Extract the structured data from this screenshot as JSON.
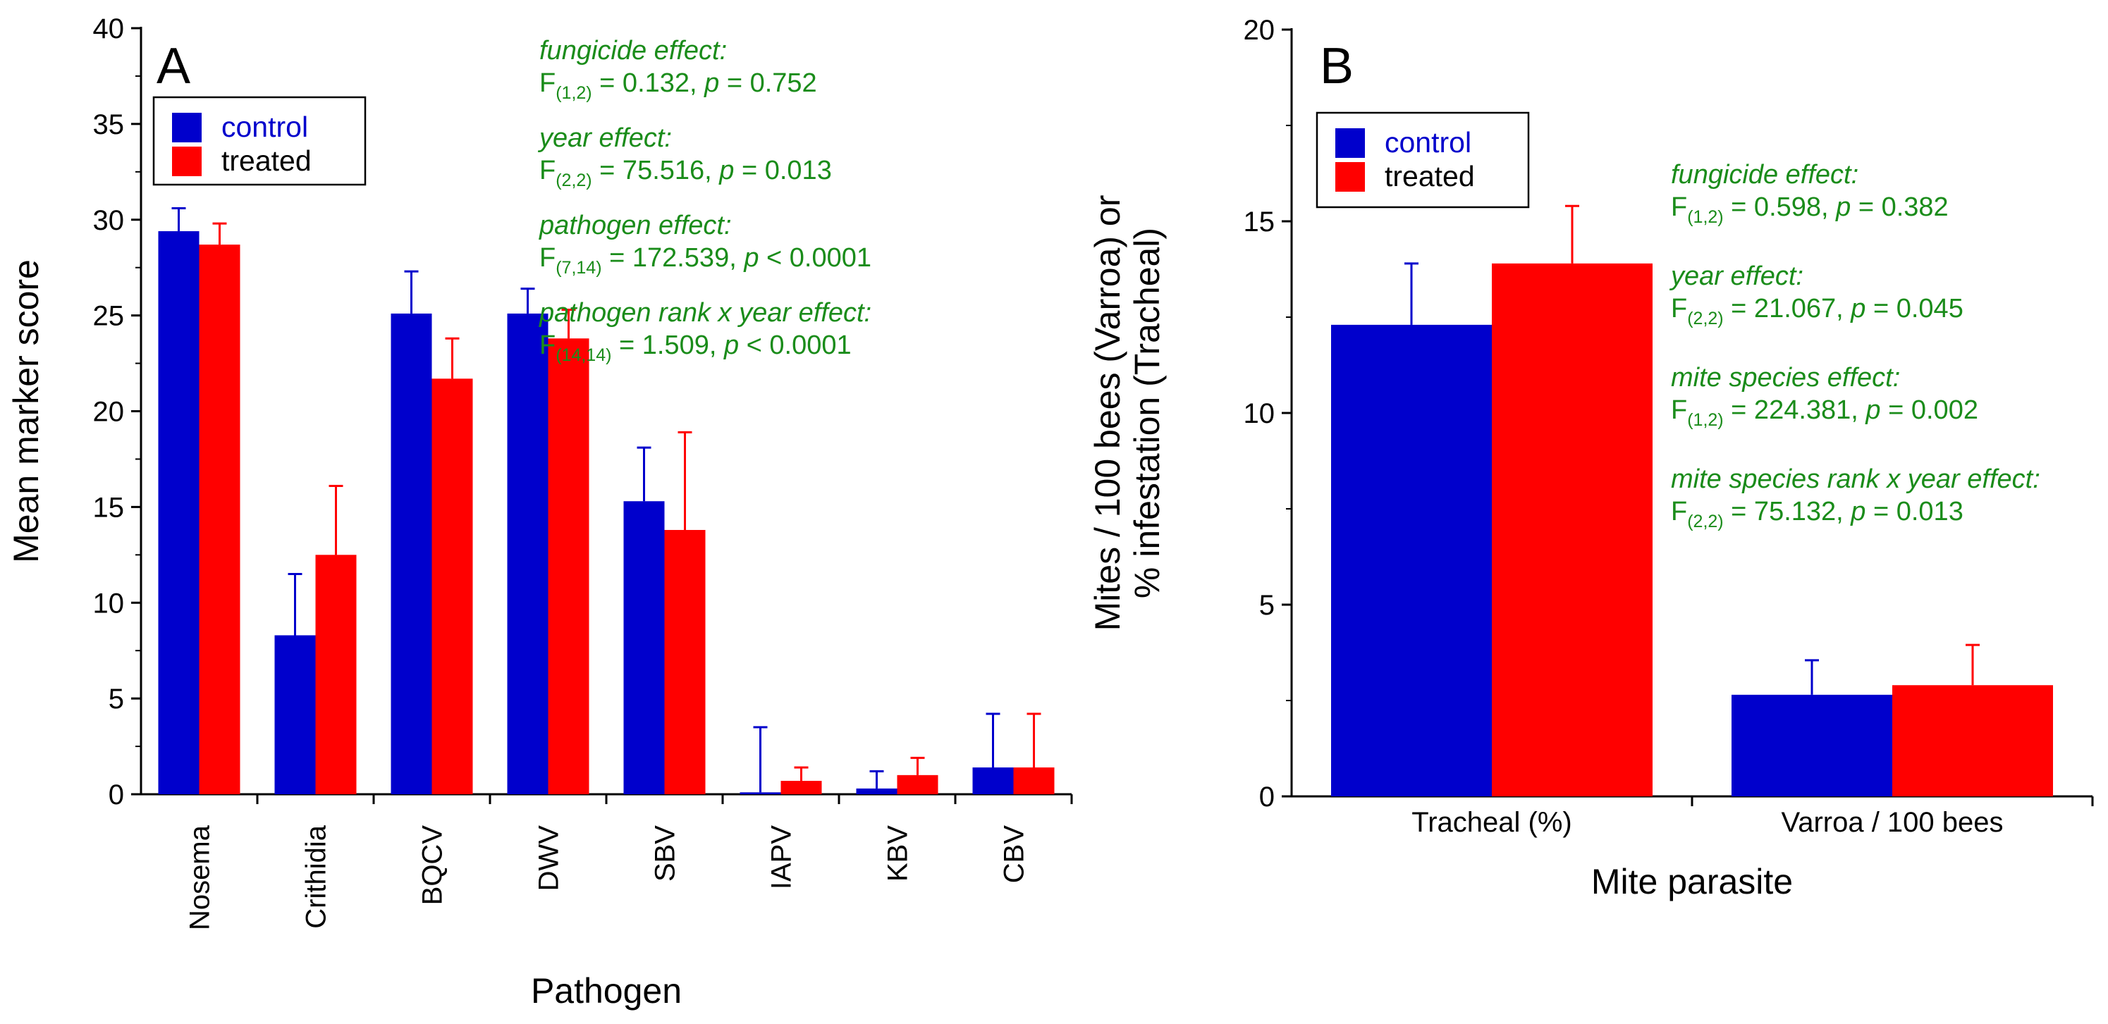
{
  "colors": {
    "control": "#0000cc",
    "treated": "#ff0000",
    "stats": "#1a8c1a",
    "axis": "#000000"
  },
  "chart_data": [
    {
      "type": "bar",
      "panel": "A",
      "xlabel": "Pathogen",
      "ylabel": "Mean marker score",
      "ylim": [
        0,
        40
      ],
      "yticks": [
        "0",
        "5",
        "10",
        "15",
        "20",
        "25",
        "30",
        "35",
        "40"
      ],
      "categories": [
        "Nosema",
        "Crithidia",
        "BQCV",
        "DWV",
        "SBV",
        "IAPV",
        "KBV",
        "CBV"
      ],
      "series": [
        {
          "name": "control",
          "values": [
            29.4,
            8.3,
            25.1,
            25.1,
            15.3,
            0.1,
            0.3,
            1.4
          ],
          "errors": [
            1.2,
            3.2,
            2.2,
            1.3,
            2.8,
            3.4,
            0.9,
            2.8
          ]
        },
        {
          "name": "treated",
          "values": [
            28.7,
            12.5,
            21.7,
            23.8,
            13.8,
            0.7,
            1.0,
            1.4
          ],
          "errors": [
            1.1,
            3.6,
            2.1,
            1.5,
            5.1,
            0.7,
            0.9,
            2.8
          ]
        }
      ],
      "legend": {
        "control": "control",
        "treated": "treated"
      },
      "stats": [
        {
          "heading": "fungicide effect:",
          "sub": "(1,2)",
          "rest": " = 0.132, ",
          "p_rel": " = 0.752"
        },
        {
          "heading": "year effect:",
          "sub": "(2,2)",
          "rest": " = 75.516, ",
          "p_rel": " = 0.013"
        },
        {
          "heading": "pathogen effect:",
          "sub": "(7,14)",
          "rest": " = 172.539, ",
          "p_rel": " < 0.0001"
        },
        {
          "heading": "pathogen rank x year effect:",
          "sub": "(14,14)",
          "rest": " = 1.509, ",
          "p_rel": " < 0.0001"
        }
      ]
    },
    {
      "type": "bar",
      "panel": "B",
      "xlabel": "Mite parasite",
      "ylabel_line1": "Mites / 100 bees (Varroa) or",
      "ylabel_line2": "% infestation (Tracheal)",
      "ylim": [
        0,
        20
      ],
      "yticks": [
        "0",
        "5",
        "10",
        "15",
        "20"
      ],
      "categories": [
        "Tracheal (%)",
        "Varroa / 100 bees"
      ],
      "series": [
        {
          "name": "control",
          "values": [
            12.3,
            2.65
          ],
          "errors": [
            1.6,
            0.9
          ]
        },
        {
          "name": "treated",
          "values": [
            13.9,
            2.9
          ],
          "errors": [
            1.5,
            1.05
          ]
        }
      ],
      "legend": {
        "control": "control",
        "treated": "treated"
      },
      "stats": [
        {
          "heading": "fungicide effect:",
          "sub": "(1,2)",
          "rest": " = 0.598, ",
          "p_rel": " = 0.382"
        },
        {
          "heading": "year effect:",
          "sub": "(2,2)",
          "rest": " = 21.067, ",
          "p_rel": " = 0.045"
        },
        {
          "heading": "mite species effect:",
          "sub": "(1,2)",
          "rest": " = 224.381, ",
          "p_rel": " = 0.002"
        },
        {
          "heading": "mite species rank x year effect:",
          "sub": "(2,2)",
          "rest": " = 75.132, ",
          "p_rel": " = 0.013"
        }
      ]
    }
  ]
}
